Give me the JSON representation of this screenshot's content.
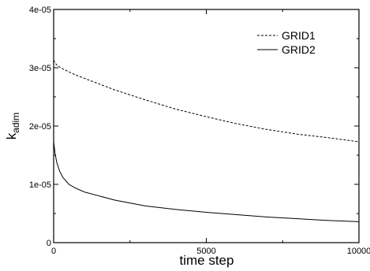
{
  "chart_data": {
    "type": "line",
    "title": "",
    "xlabel": "time step",
    "ylabel_main": "k",
    "ylabel_sub": "adim",
    "xlim": [
      0,
      10000
    ],
    "ylim": [
      0,
      4e-05
    ],
    "x_ticks": [
      0,
      5000,
      10000
    ],
    "x_tick_labels": [
      "0",
      "5000",
      "10000"
    ],
    "y_ticks": [
      0,
      1e-05,
      2e-05,
      3e-05,
      4e-05
    ],
    "y_tick_labels": [
      "0",
      "1e-05",
      "2e-05",
      "3e-05",
      "4e-05"
    ],
    "grid": false,
    "legend_position": "top-right",
    "series": [
      {
        "name": "GRID1",
        "style": "dashed",
        "color": "#000000",
        "x": [
          0,
          50,
          100,
          200,
          300,
          500,
          700,
          1000,
          1500,
          2000,
          3000,
          4000,
          5000,
          6000,
          7000,
          8000,
          9000,
          10000
        ],
        "y": [
          3.13e-05,
          3.08e-05,
          3.05e-05,
          3.01e-05,
          2.98e-05,
          2.93e-05,
          2.88e-05,
          2.82e-05,
          2.72e-05,
          2.62e-05,
          2.45e-05,
          2.29e-05,
          2.16e-05,
          2.04e-05,
          1.94e-05,
          1.86e-05,
          1.8e-05,
          1.73e-05
        ]
      },
      {
        "name": "GRID2",
        "style": "solid",
        "color": "#000000",
        "x": [
          0,
          50,
          100,
          200,
          300,
          500,
          700,
          1000,
          1500,
          2000,
          3000,
          4000,
          5000,
          6000,
          7000,
          8000,
          9000,
          10000
        ],
        "y": [
          1.73e-05,
          1.52e-05,
          1.38e-05,
          1.22e-05,
          1.12e-05,
          1e-05,
          9.4e-06,
          8.7e-06,
          8e-06,
          7.3e-06,
          6.3e-06,
          5.7e-06,
          5.2e-06,
          4.8e-06,
          4.4e-06,
          4.1e-06,
          3.8e-06,
          3.6e-06
        ]
      }
    ]
  }
}
